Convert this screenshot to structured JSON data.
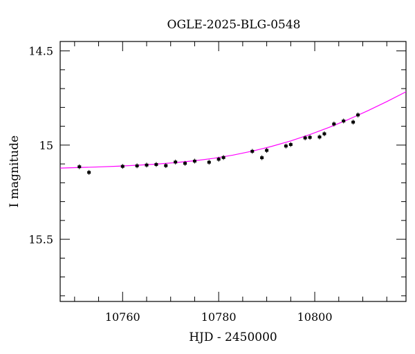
{
  "chart_data": {
    "type": "scatter",
    "title": "OGLE-2025-BLG-0548",
    "xlabel": "HJD - 2450000",
    "ylabel": "I magnitude",
    "xlim": [
      10747,
      10819
    ],
    "ylim": [
      15.83,
      14.45
    ],
    "y_inverted": true,
    "grid": false,
    "x_ticks": [
      10760,
      10780,
      10800
    ],
    "x_tick_labels": [
      "10760",
      "10780",
      "10800"
    ],
    "y_ticks": [
      14.5,
      15,
      15.5
    ],
    "y_tick_labels": [
      "14.5",
      "15",
      "15.5"
    ],
    "x_minor_step": 5,
    "y_minor_step": 0.1,
    "points": {
      "color": "#000000",
      "x": [
        10751,
        10753,
        10760,
        10763,
        10765,
        10767,
        10769,
        10771,
        10773,
        10775,
        10778,
        10780,
        10781,
        10787,
        10789,
        10790,
        10794,
        10795,
        10798,
        10799,
        10801,
        10802,
        10804,
        10806,
        10808,
        10809
      ],
      "y": [
        15.115,
        15.145,
        15.113,
        15.11,
        15.106,
        15.103,
        15.109,
        15.09,
        15.097,
        15.085,
        15.091,
        15.075,
        15.066,
        15.033,
        15.067,
        15.028,
        15.005,
        14.997,
        14.962,
        14.959,
        14.957,
        14.94,
        14.888,
        14.872,
        14.878,
        14.84
      ]
    },
    "model": {
      "color": "#ff00ff",
      "x": [
        10747,
        10751,
        10755,
        10759,
        10763,
        10767,
        10771,
        10775,
        10779,
        10783,
        10787,
        10791,
        10795,
        10799,
        10803,
        10807,
        10811,
        10815,
        10819
      ],
      "y": [
        15.122,
        15.119,
        15.116,
        15.112,
        15.107,
        15.101,
        15.093,
        15.083,
        15.07,
        15.053,
        15.032,
        15.007,
        14.978,
        14.944,
        14.906,
        14.864,
        14.818,
        14.769,
        14.717
      ]
    }
  }
}
